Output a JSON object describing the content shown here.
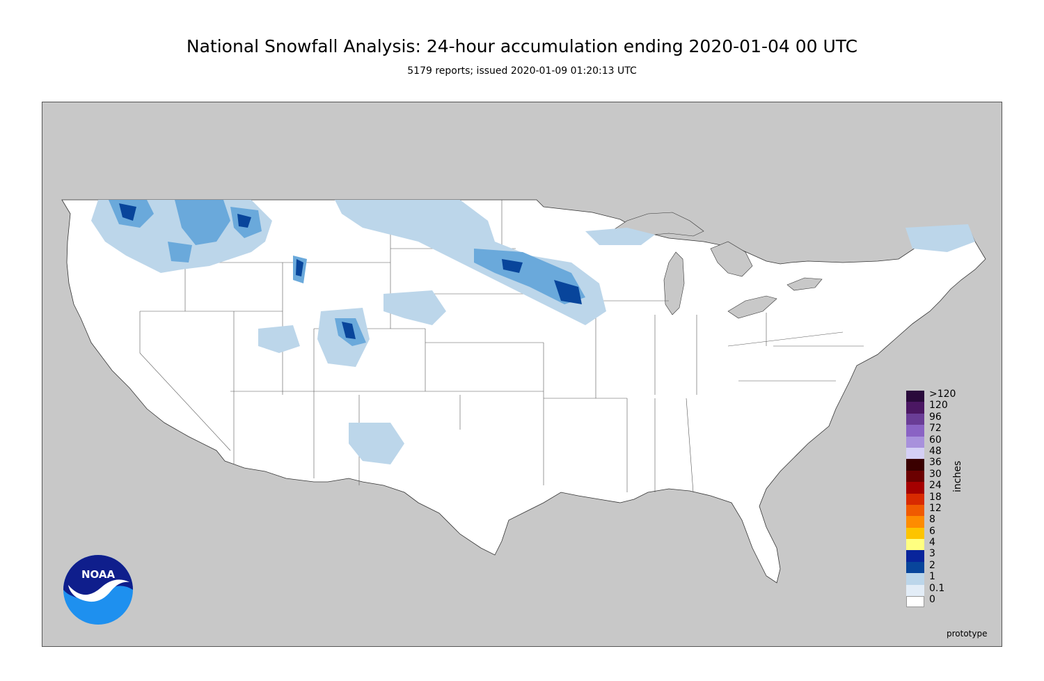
{
  "header": {
    "title": "National Snowfall Analysis: 24-hour accumulation ending 2020-01-04 00 UTC",
    "subtitle": "5179 reports; issued 2020-01-09 01:20:13 UTC"
  },
  "legend": {
    "units": "inches",
    "entries": [
      {
        "label": ">120",
        "color": "#2a0a3b"
      },
      {
        "label": "120",
        "color": "#4b1763"
      },
      {
        "label": "96",
        "color": "#6a3d96"
      },
      {
        "label": "72",
        "color": "#8a63c4"
      },
      {
        "label": "60",
        "color": "#a891dc"
      },
      {
        "label": "48",
        "color": "#d4cff5"
      },
      {
        "label": "36",
        "color": "#3a0000"
      },
      {
        "label": "30",
        "color": "#6b0000"
      },
      {
        "label": "24",
        "color": "#a50000"
      },
      {
        "label": "18",
        "color": "#d82a00"
      },
      {
        "label": "12",
        "color": "#f05a00"
      },
      {
        "label": "8",
        "color": "#fe8c00"
      },
      {
        "label": "6",
        "color": "#fdc400"
      },
      {
        "label": "4",
        "color": "#ffff80"
      },
      {
        "label": "3",
        "color": "#08249b"
      },
      {
        "label": "2",
        "color": "#08459b"
      },
      {
        "label": "1",
        "color": "#1c65ad"
      },
      {
        "label": "0.1",
        "color": "#3a87c4"
      },
      {
        "label": "0",
        "color": "#6aa9db"
      }
    ],
    "bottom_swatches": [
      "#bcd6ea",
      "#e3edf7",
      "#ffffff"
    ]
  },
  "logo": {
    "text": "NOAA",
    "icon": "noaa-logo"
  },
  "footer": {
    "label": "prototype"
  },
  "colors": {
    "ocean": "#c8c8c8",
    "land": "#ffffff",
    "snow_light": "#bcd6ea",
    "snow_mid": "#6aa9db",
    "snow_heavy": "#08459b"
  }
}
